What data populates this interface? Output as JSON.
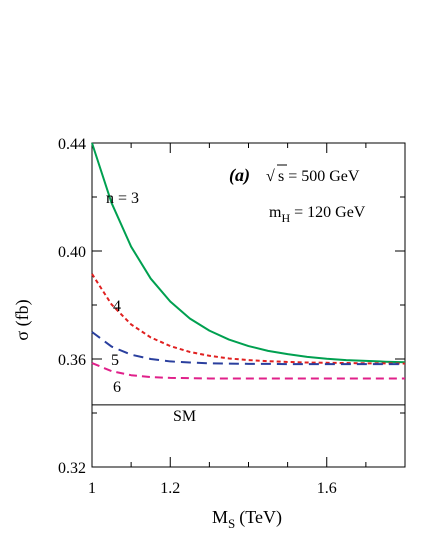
{
  "chart_data": {
    "type": "line",
    "title": "",
    "xlabel": {
      "main": "M",
      "sub": "S",
      "unit": "(TeV)"
    },
    "ylabel": "σ (fb)",
    "xlim": [
      1.0,
      1.8
    ],
    "ylim": [
      0.32,
      0.44
    ],
    "xticks": {
      "major": [
        1.0,
        1.2,
        1.6
      ],
      "labels": [
        "1",
        "1.2",
        "1.6"
      ],
      "minor": [
        1.1,
        1.3,
        1.4,
        1.5,
        1.7
      ]
    },
    "yticks": {
      "major": [
        0.32,
        0.36,
        0.4,
        0.44
      ],
      "labels": [
        "0.32",
        "0.36",
        "0.40",
        "0.44"
      ],
      "minor": [
        0.34,
        0.38,
        0.42
      ]
    },
    "grid": false,
    "legend": "none",
    "annotations": {
      "panel": "(a)",
      "sqrt_symbol": "√",
      "energy": "s = 500 GeV",
      "mass_main": "m",
      "mass_sub": "H",
      "mass_value": "= 120 GeV"
    },
    "series": [
      {
        "name": "n = 3",
        "color": "#00a050",
        "dash": "solid",
        "x": [
          1.0,
          1.05,
          1.1,
          1.15,
          1.2,
          1.25,
          1.3,
          1.35,
          1.4,
          1.45,
          1.5,
          1.55,
          1.6,
          1.65,
          1.7,
          1.75,
          1.8
        ],
        "y": [
          0.44,
          0.4178,
          0.4016,
          0.3898,
          0.3813,
          0.375,
          0.3705,
          0.3672,
          0.3648,
          0.363,
          0.3618,
          0.3608,
          0.3601,
          0.3596,
          0.3593,
          0.359,
          0.3588
        ]
      },
      {
        "name": "4",
        "color": "#e02020",
        "dash": "4,3",
        "x": [
          1.0,
          1.05,
          1.1,
          1.15,
          1.2,
          1.25,
          1.3,
          1.35,
          1.4,
          1.45,
          1.5,
          1.55,
          1.6,
          1.65,
          1.7,
          1.75,
          1.8
        ],
        "y": [
          0.3915,
          0.3802,
          0.3728,
          0.368,
          0.3648,
          0.3626,
          0.3612,
          0.3602,
          0.3596,
          0.3592,
          0.3589,
          0.3587,
          0.3586,
          0.3585,
          0.3584,
          0.3584,
          0.3583
        ]
      },
      {
        "name": "5",
        "color": "#2a3f9e",
        "dash": "10,6",
        "x": [
          1.0,
          1.05,
          1.1,
          1.15,
          1.2,
          1.25,
          1.3,
          1.35,
          1.4,
          1.45,
          1.5,
          1.55,
          1.6,
          1.65,
          1.7,
          1.75,
          1.8
        ],
        "y": [
          0.37,
          0.3646,
          0.3616,
          0.36,
          0.3591,
          0.3587,
          0.3584,
          0.3583,
          0.3582,
          0.3582,
          0.3581,
          0.3581,
          0.3581,
          0.3581,
          0.3581,
          0.3581,
          0.3581
        ]
      },
      {
        "name": "6",
        "color": "#e0208a",
        "dash": "8,5",
        "x": [
          1.0,
          1.05,
          1.1,
          1.15,
          1.2,
          1.25,
          1.3,
          1.35,
          1.4,
          1.45,
          1.5,
          1.55,
          1.6,
          1.65,
          1.7,
          1.75,
          1.8
        ],
        "y": [
          0.3585,
          0.3555,
          0.354,
          0.3533,
          0.353,
          0.3529,
          0.3528,
          0.3528,
          0.3528,
          0.3528,
          0.3528,
          0.3528,
          0.3528,
          0.3528,
          0.3528,
          0.3528,
          0.3528
        ]
      },
      {
        "name": "SM",
        "color": "#000000",
        "dash": "solid",
        "x": [
          1.0,
          1.8
        ],
        "y": [
          0.343,
          0.343
        ]
      }
    ]
  }
}
